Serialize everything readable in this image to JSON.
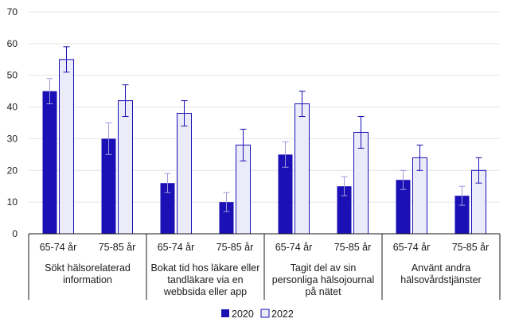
{
  "chart_data": {
    "type": "bar",
    "ylim": [
      0,
      70
    ],
    "yticks": [
      0,
      10,
      20,
      30,
      40,
      50,
      60,
      70
    ],
    "grid": true,
    "legend_position": "bottom-center",
    "groups": [
      {
        "lines": [
          "Sökt hälsorelaterad",
          "information"
        ]
      },
      {
        "lines": [
          "Bokat tid hos läkare eller",
          "tandläkare via en",
          "webbsida eller app"
        ]
      },
      {
        "lines": [
          "Tagit del av sin",
          "personliga hälsojournal",
          "på nätet"
        ]
      },
      {
        "lines": [
          "Använt andra",
          "hälsovårdstjänster"
        ]
      }
    ],
    "categories": [
      "65-74 år",
      "75-85 år",
      "65-74 år",
      "75-85 år",
      "65-74 år",
      "75-85 år",
      "65-74 år",
      "75-85 år"
    ],
    "series": [
      {
        "name": "2020",
        "color": "#1a10b5",
        "values": [
          45,
          30,
          16,
          10,
          25,
          15,
          17,
          12
        ],
        "error_low": [
          41,
          25,
          13,
          7,
          21,
          12,
          14,
          9
        ],
        "error_high": [
          49,
          35,
          19,
          13,
          29,
          18,
          20,
          15
        ]
      },
      {
        "name": "2022",
        "color": "#ecebfa",
        "values": [
          55,
          42,
          38,
          28,
          41,
          32,
          24,
          20
        ],
        "error_low": [
          51,
          37,
          34,
          23,
          37,
          27,
          20,
          16
        ],
        "error_high": [
          59,
          47,
          42,
          33,
          45,
          37,
          28,
          24
        ]
      }
    ]
  }
}
